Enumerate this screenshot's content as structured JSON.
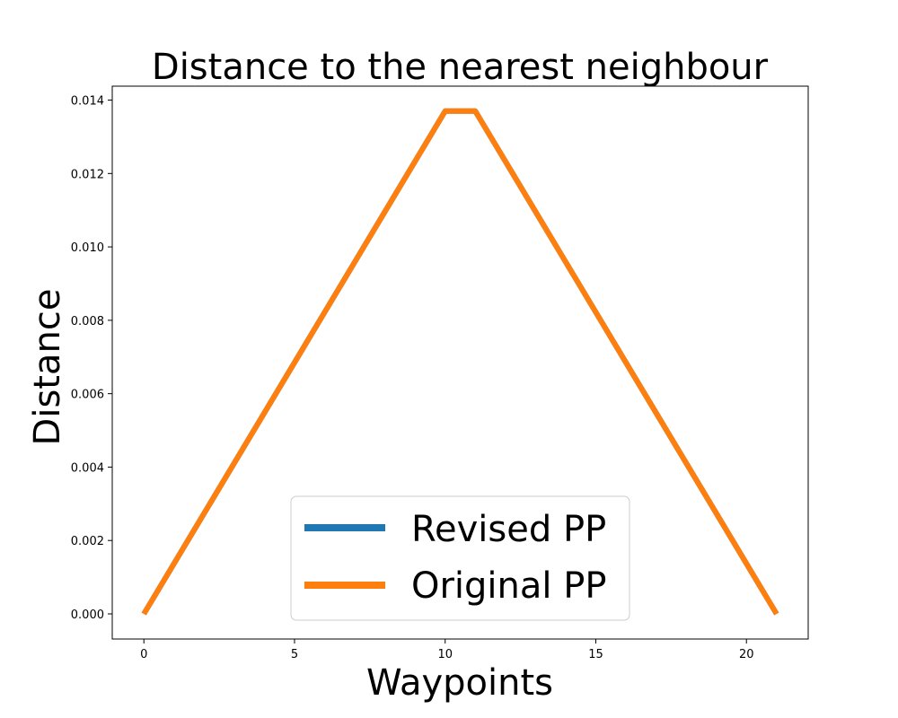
{
  "chart_data": {
    "type": "line",
    "title": "Distance to the nearest neighbour",
    "xlabel": "Waypoints",
    "ylabel": "Distance",
    "xlim": [
      -1.05,
      22.05
    ],
    "ylim": [
      -0.000685,
      0.01438
    ],
    "x_ticks": [
      "0",
      "5",
      "10",
      "15",
      "20"
    ],
    "y_ticks": [
      "0.000",
      "0.002",
      "0.004",
      "0.006",
      "0.008",
      "0.010",
      "0.012",
      "0.014"
    ],
    "grid": false,
    "legend_position": "lower center",
    "x": [
      0,
      1,
      2,
      3,
      4,
      5,
      6,
      7,
      8,
      9,
      10,
      11,
      12,
      13,
      14,
      15,
      16,
      17,
      18,
      19,
      20,
      21
    ],
    "series": [
      {
        "name": "Revised PP",
        "color": "#1f77b4",
        "values": [
          0.0,
          0.00137,
          0.00274,
          0.00411,
          0.00548,
          0.00685,
          0.00822,
          0.00959,
          0.01096,
          0.01233,
          0.0137,
          0.0137,
          0.01233,
          0.01096,
          0.00959,
          0.00822,
          0.00685,
          0.00548,
          0.00411,
          0.00274,
          0.00137,
          0.0
        ]
      },
      {
        "name": "Original PP",
        "color": "#ff7f0e",
        "values": [
          0.0,
          0.00137,
          0.00274,
          0.00411,
          0.00548,
          0.00685,
          0.00822,
          0.00959,
          0.01096,
          0.01233,
          0.0137,
          0.0137,
          0.01233,
          0.01096,
          0.00959,
          0.00822,
          0.00685,
          0.00548,
          0.00411,
          0.00274,
          0.00137,
          0.0
        ]
      }
    ]
  }
}
